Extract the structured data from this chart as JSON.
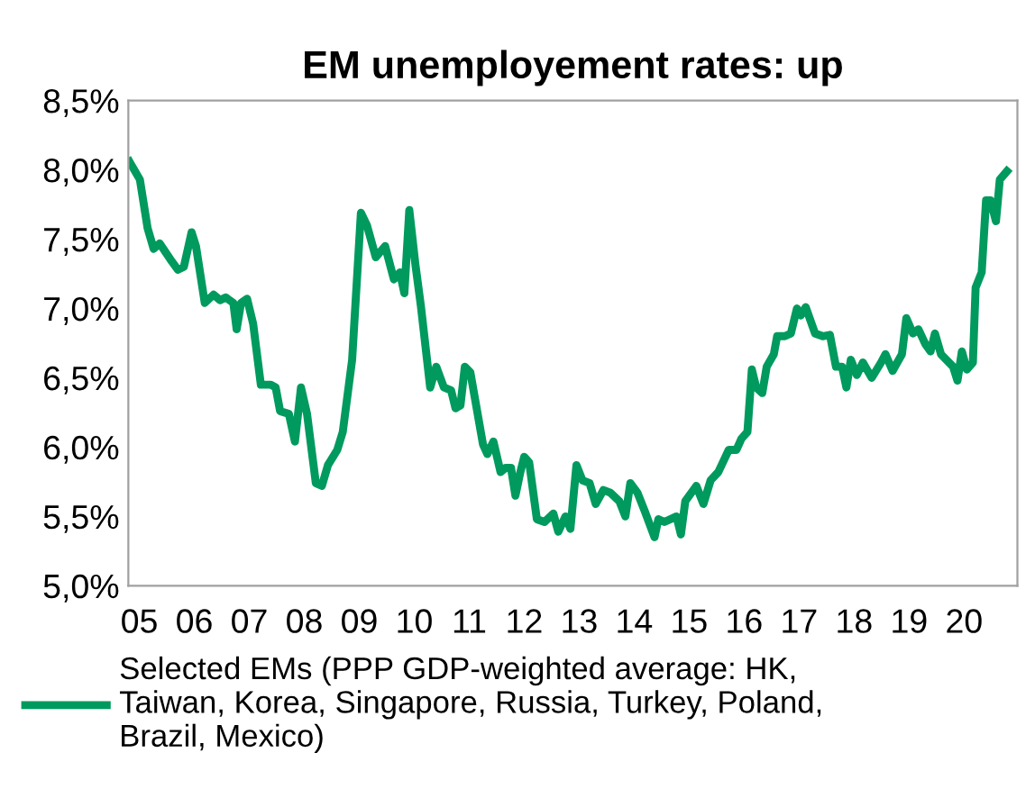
{
  "chart_data": {
    "type": "line",
    "title": "EM unemployement rates: up",
    "xlim": [
      2004.8,
      2020.97
    ],
    "ylim": [
      5.0,
      8.5
    ],
    "xticks": [
      {
        "value": 2005,
        "label": "05"
      },
      {
        "value": 2006,
        "label": "06"
      },
      {
        "value": 2007,
        "label": "07"
      },
      {
        "value": 2008,
        "label": "08"
      },
      {
        "value": 2009,
        "label": "09"
      },
      {
        "value": 2010,
        "label": "10"
      },
      {
        "value": 2011,
        "label": "11"
      },
      {
        "value": 2012,
        "label": "12"
      },
      {
        "value": 2013,
        "label": "13"
      },
      {
        "value": 2014,
        "label": "14"
      },
      {
        "value": 2015,
        "label": "15"
      },
      {
        "value": 2016,
        "label": "16"
      },
      {
        "value": 2017,
        "label": "17"
      },
      {
        "value": 2018,
        "label": "18"
      },
      {
        "value": 2019,
        "label": "19"
      },
      {
        "value": 2020,
        "label": "20"
      }
    ],
    "yticks": [
      {
        "value": 5.0,
        "label": "5,0%"
      },
      {
        "value": 5.5,
        "label": "5,5%"
      },
      {
        "value": 6.0,
        "label": "6,0%"
      },
      {
        "value": 6.5,
        "label": "6,5%"
      },
      {
        "value": 7.0,
        "label": "7,0%"
      },
      {
        "value": 7.5,
        "label": "7,5%"
      },
      {
        "value": 8.0,
        "label": "8,0%"
      },
      {
        "value": 8.5,
        "label": "8,5%"
      }
    ],
    "grid": false,
    "legend": "bottom",
    "marker": "none",
    "line_style": "solid",
    "series": [
      {
        "name": "Selected EMs (PPP GDP-weighted average: HK,\nTaiwan, Korea, Singapore, Russia, Turkey, Poland,\nBrazil, Mexico)",
        "color": "#009a5e",
        "x": [
          2004.82,
          2005.01,
          2005.15,
          2005.26,
          2005.37,
          2005.59,
          2005.7,
          2005.81,
          2005.95,
          2006.03,
          2006.19,
          2006.35,
          2006.47,
          2006.57,
          2006.71,
          2006.77,
          2006.85,
          2006.96,
          2007.07,
          2007.21,
          2007.39,
          2007.48,
          2007.56,
          2007.72,
          2007.83,
          2007.94,
          2008.05,
          2008.21,
          2008.32,
          2008.43,
          2008.6,
          2008.7,
          2008.87,
          2009.03,
          2009.14,
          2009.3,
          2009.47,
          2009.63,
          2009.74,
          2009.82,
          2009.91,
          2010.02,
          2010.12,
          2010.29,
          2010.4,
          2010.54,
          2010.67,
          2010.75,
          2010.84,
          2010.92,
          2011.02,
          2011.25,
          2011.33,
          2011.44,
          2011.57,
          2011.66,
          2011.76,
          2011.84,
          2011.93,
          2012.0,
          2012.09,
          2012.23,
          2012.37,
          2012.53,
          2012.62,
          2012.75,
          2012.84,
          2012.95,
          2013.06,
          2013.19,
          2013.3,
          2013.44,
          2013.57,
          2013.73,
          2013.84,
          2013.93,
          2014.06,
          2014.19,
          2014.37,
          2014.44,
          2014.55,
          2014.77,
          2014.85,
          2014.93,
          2015.13,
          2015.26,
          2015.39,
          2015.53,
          2015.72,
          2015.86,
          2015.95,
          2016.06,
          2016.14,
          2016.22,
          2016.33,
          2016.41,
          2016.54,
          2016.6,
          2016.74,
          2016.85,
          2016.96,
          2017.03,
          2017.12,
          2017.29,
          2017.43,
          2017.56,
          2017.67,
          2017.78,
          2017.86,
          2017.94,
          2018.05,
          2018.16,
          2018.32,
          2018.49,
          2018.57,
          2018.7,
          2018.87,
          2018.95,
          2019.07,
          2019.17,
          2019.3,
          2019.39,
          2019.47,
          2019.58,
          2019.8,
          2019.88,
          2019.96,
          2020.05,
          2020.16,
          2020.21,
          2020.32,
          2020.4,
          2020.48,
          2020.58,
          2020.65,
          2020.78
        ],
        "values": [
          8.06,
          7.93,
          7.58,
          7.43,
          7.47,
          7.34,
          7.28,
          7.3,
          7.55,
          7.45,
          7.04,
          7.1,
          7.06,
          7.08,
          7.04,
          6.85,
          7.04,
          7.07,
          6.89,
          6.45,
          6.45,
          6.43,
          6.26,
          6.24,
          6.04,
          6.43,
          6.24,
          5.74,
          5.72,
          5.87,
          5.98,
          6.11,
          6.63,
          7.69,
          7.6,
          7.37,
          7.45,
          7.21,
          7.26,
          7.11,
          7.71,
          7.32,
          7.02,
          6.43,
          6.58,
          6.43,
          6.41,
          6.28,
          6.3,
          6.58,
          6.54,
          6.02,
          5.95,
          6.04,
          5.82,
          5.85,
          5.85,
          5.65,
          5.82,
          5.93,
          5.89,
          5.48,
          5.46,
          5.52,
          5.39,
          5.5,
          5.41,
          5.87,
          5.76,
          5.74,
          5.59,
          5.69,
          5.67,
          5.61,
          5.5,
          5.74,
          5.67,
          5.54,
          5.35,
          5.48,
          5.46,
          5.5,
          5.37,
          5.61,
          5.72,
          5.59,
          5.76,
          5.82,
          5.98,
          5.98,
          6.06,
          6.11,
          6.56,
          6.43,
          6.39,
          6.58,
          6.67,
          6.8,
          6.8,
          6.82,
          7.0,
          6.95,
          7.01,
          6.82,
          6.8,
          6.81,
          6.58,
          6.58,
          6.43,
          6.63,
          6.52,
          6.61,
          6.5,
          6.61,
          6.67,
          6.55,
          6.67,
          6.93,
          6.82,
          6.85,
          6.74,
          6.69,
          6.82,
          6.67,
          6.58,
          6.48,
          6.69,
          6.56,
          6.61,
          7.15,
          7.26,
          7.78,
          7.78,
          7.63,
          7.93,
          7.99
        ]
      }
    ]
  }
}
